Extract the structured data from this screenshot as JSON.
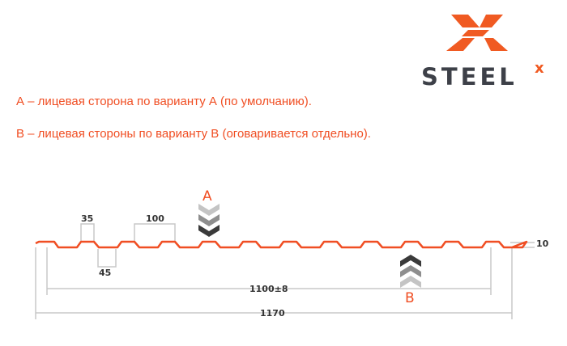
{
  "logo": {
    "text": "STEELX",
    "colors": {
      "orange": "#f05a22",
      "gray": "#3d4048"
    }
  },
  "notes": [
    "А – лицевая сторона по варианту А (по умолчанию).",
    "В – лицевая стороны по варианту В (оговаривается отдельно)."
  ],
  "diagram": {
    "side_a": "A",
    "side_b": "B",
    "dims": {
      "top_width": "35",
      "bottom_width": "45",
      "pitch": "100",
      "height": "10",
      "useful_width": "1100±8",
      "total_width": "1170"
    },
    "colors": {
      "profile": "#f04e23",
      "dimension": "#c8c8c8",
      "text": "#f04e23"
    }
  }
}
